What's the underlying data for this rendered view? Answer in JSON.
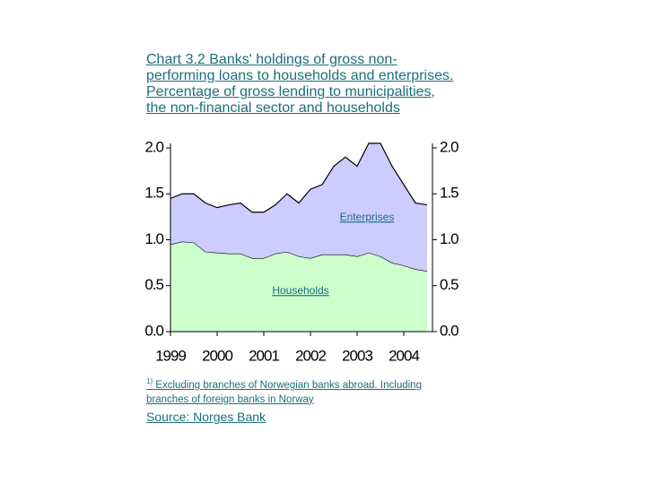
{
  "chart_data": {
    "type": "stacked-area",
    "title": "Chart 3.2 Banks' holdings of gross non-performing loans to households and enterprises. Percentage of gross lending to municipalities, the non-financial sector and households",
    "categories": [
      "1999",
      null,
      null,
      null,
      "2000",
      null,
      null,
      null,
      "2001",
      null,
      null,
      null,
      "2002",
      null,
      null,
      null,
      "2003",
      null,
      null,
      null,
      "2004",
      null,
      null
    ],
    "series": [
      {
        "name": "Households",
        "color": "#ccffcc",
        "values": [
          0.95,
          0.98,
          0.97,
          0.87,
          0.86,
          0.85,
          0.85,
          0.8,
          0.8,
          0.85,
          0.87,
          0.82,
          0.8,
          0.84,
          0.84,
          0.84,
          0.82,
          0.86,
          0.82,
          0.75,
          0.72,
          0.68,
          0.66
        ]
      },
      {
        "name": "Enterprises",
        "color": "#ccccff",
        "values": [
          0.5,
          0.52,
          0.53,
          0.53,
          0.49,
          0.53,
          0.55,
          0.5,
          0.5,
          0.53,
          0.63,
          0.58,
          0.75,
          0.76,
          0.96,
          1.06,
          0.98,
          1.19,
          1.23,
          1.05,
          0.88,
          0.72,
          0.72
        ]
      }
    ],
    "ylim": [
      0,
      2.0
    ],
    "yticks": [
      {
        "value": 0,
        "label": "0.0"
      },
      {
        "value": 0.5,
        "label": "0.5"
      },
      {
        "value": 1.0,
        "label": "1.0"
      },
      {
        "value": 1.5,
        "label": "1.5"
      },
      {
        "value": 2.0,
        "label": "2.0"
      }
    ],
    "y2lim": [
      0,
      2.0
    ],
    "y2ticks": [
      {
        "value": 0,
        "label": "0.0"
      },
      {
        "value": 0.5,
        "label": "0.5"
      },
      {
        "value": 1.0,
        "label": "1.0"
      },
      {
        "value": 1.5,
        "label": "1.5"
      },
      {
        "value": 2.0,
        "label": "2.0"
      }
    ],
    "footnote_marker": "1)",
    "footnote": "Excluding branches of Norwegian banks abroad. Including branches of foreign banks in Norway",
    "source": "Source: Norges Bank"
  }
}
